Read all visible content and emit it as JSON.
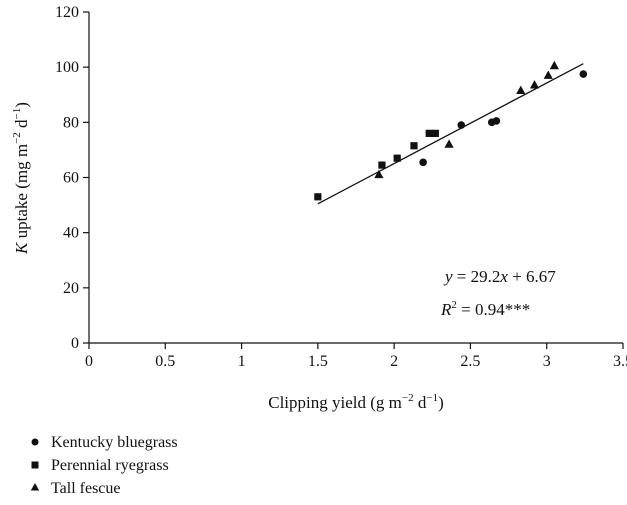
{
  "chart_data": {
    "type": "scatter",
    "title": "",
    "xlabel": {
      "pre": "Clipping yield (g m",
      "sup1": "−2",
      "mid": " d",
      "sup2": "−1",
      "post": ")"
    },
    "ylabel": {
      "italic": "K",
      "pre": " uptake (mg m",
      "sup1": "−2",
      "mid": " d",
      "sup2": "−1",
      "post": ")"
    },
    "xlim": [
      0,
      3.5
    ],
    "ylim": [
      0,
      120
    ],
    "x_ticks": [
      {
        "value": 0,
        "label": "0"
      },
      {
        "value": 0.5,
        "label": "0.5"
      },
      {
        "value": 1,
        "label": "1"
      },
      {
        "value": 1.5,
        "label": "1.5"
      },
      {
        "value": 2,
        "label": "2"
      },
      {
        "value": 2.5,
        "label": "2.5"
      },
      {
        "value": 3,
        "label": "3"
      },
      {
        "value": 3.5,
        "label": "3.5"
      }
    ],
    "y_ticks": [
      {
        "value": 0,
        "label": "0"
      },
      {
        "value": 20,
        "label": "20"
      },
      {
        "value": 40,
        "label": "40"
      },
      {
        "value": 60,
        "label": "60"
      },
      {
        "value": 80,
        "label": "80"
      },
      {
        "value": 100,
        "label": "100"
      },
      {
        "value": 120,
        "label": "120"
      }
    ],
    "grid": false,
    "legend_position": "bottom-left",
    "series": [
      {
        "name": "Kentucky bluegrass",
        "marker": "circle",
        "points": [
          [
            2.19,
            65.5
          ],
          [
            2.44,
            79
          ],
          [
            2.64,
            80
          ],
          [
            2.67,
            80.5
          ],
          [
            3.24,
            97.5
          ]
        ]
      },
      {
        "name": "Perennial ryegrass",
        "marker": "square",
        "points": [
          [
            1.5,
            53
          ],
          [
            1.92,
            64.5
          ],
          [
            2.02,
            67
          ],
          [
            2.13,
            71.5
          ],
          [
            2.23,
            76
          ],
          [
            2.27,
            76
          ]
        ]
      },
      {
        "name": "Tall fescue",
        "marker": "triangle",
        "points": [
          [
            1.9,
            61
          ],
          [
            2.36,
            72
          ],
          [
            2.83,
            91.5
          ],
          [
            2.92,
            93.5
          ],
          [
            3.01,
            97
          ],
          [
            3.05,
            100.5
          ]
        ]
      }
    ],
    "fit": {
      "slope": 29.2,
      "intercept": 6.67,
      "x_range": [
        1.5,
        3.24
      ]
    },
    "annotations": {
      "equation": {
        "var": "y",
        "rest": " = 29.2",
        "xvar": "x",
        "tail": " + 6.67"
      },
      "r2": {
        "var": "R",
        "sup": "2",
        "rest": " = 0.94***"
      }
    }
  }
}
